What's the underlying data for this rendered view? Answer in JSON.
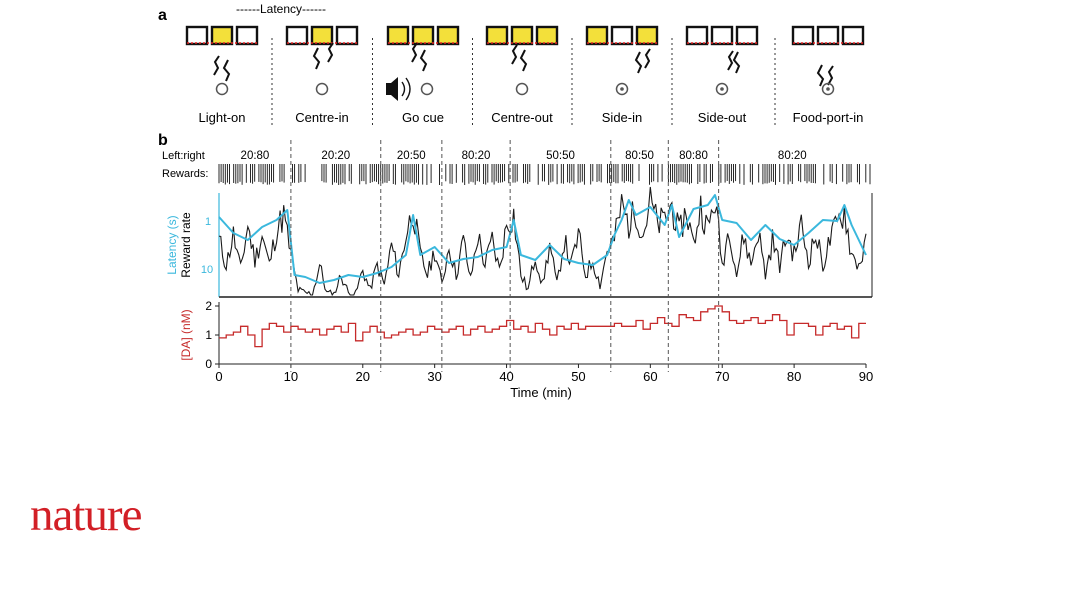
{
  "panel_a": {
    "label": "a",
    "latency_label": "------Latency------",
    "stages": [
      "Light-on",
      "Centre-in",
      "Go cue",
      "Centre-out",
      "Side-in",
      "Side-out",
      "Food-port-in"
    ]
  },
  "panel_b": {
    "label": "b",
    "left_right_label": "Left:right",
    "rewards_label": "Rewards:"
  },
  "brand": {
    "logo_text": "nature"
  },
  "colors": {
    "latency": "#3bb8dd",
    "reward": "#1a1a1a",
    "da": "#c62a2a",
    "highlight": "#f3e03a",
    "light": "#e02020"
  },
  "chart_data": [
    {
      "type": "line",
      "title": "",
      "blocks": [
        {
          "label": "20:80",
          "start": 0,
          "end": 10
        },
        {
          "label": "20:20",
          "start": 10,
          "end": 22.5
        },
        {
          "label": "20:50",
          "start": 22.5,
          "end": 31
        },
        {
          "label": "80:20",
          "start": 31,
          "end": 40.5
        },
        {
          "label": "50:50",
          "start": 40.5,
          "end": 54.5
        },
        {
          "label": "80:50",
          "start": 54.5,
          "end": 62.5
        },
        {
          "label": "80:80",
          "start": 62.5,
          "end": 69.5
        },
        {
          "label": "80:20",
          "start": 69.5,
          "end": 90
        }
      ],
      "ylabel_left": "Latency (s)",
      "ylabel_right": "Reward rate",
      "yticks": [
        "1",
        "10"
      ],
      "xlim": [
        0,
        90
      ],
      "series": [
        {
          "name": "Latency (s)",
          "x": [
            0,
            2,
            4,
            6,
            8,
            9.5,
            10.5,
            12,
            14,
            16,
            18,
            20,
            22,
            24,
            26,
            27,
            28,
            30,
            32,
            34,
            36,
            38,
            40,
            41,
            42,
            44,
            46,
            48,
            50,
            52,
            54,
            55,
            56,
            57,
            58,
            60,
            62,
            63,
            64,
            66,
            68,
            69,
            70,
            72,
            74,
            76,
            78,
            80,
            82,
            84,
            86,
            87,
            88,
            90
          ],
          "y": [
            0.78,
            0.62,
            0.55,
            0.68,
            0.75,
            0.85,
            0.2,
            0.18,
            0.12,
            0.15,
            0.2,
            0.18,
            0.22,
            0.28,
            0.4,
            0.8,
            0.4,
            0.48,
            0.32,
            0.36,
            0.38,
            0.45,
            0.48,
            0.75,
            0.4,
            0.35,
            0.5,
            0.36,
            0.32,
            0.3,
            0.4,
            0.6,
            0.75,
            0.95,
            0.8,
            0.88,
            0.7,
            0.9,
            0.58,
            0.86,
            0.9,
            1.0,
            0.75,
            0.72,
            0.55,
            0.7,
            0.56,
            0.5,
            0.62,
            0.75,
            0.74,
            0.9,
            0.7,
            0.4
          ]
        },
        {
          "name": "Reward rate",
          "x": [
            0,
            1,
            2,
            3,
            4,
            5,
            6,
            7,
            8,
            9,
            10,
            11,
            12,
            13,
            14,
            15,
            16,
            17,
            18,
            19,
            20,
            21,
            22,
            23,
            24,
            25,
            26,
            27,
            28,
            29,
            30,
            31,
            32,
            33,
            34,
            35,
            36,
            37,
            38,
            39,
            40,
            41,
            42,
            43,
            44,
            45,
            46,
            47,
            48,
            49,
            50,
            51,
            52,
            53,
            54,
            55,
            56,
            57,
            58,
            59,
            60,
            61,
            62,
            63,
            64,
            65,
            66,
            67,
            68,
            69,
            70,
            71,
            72,
            73,
            74,
            75,
            76,
            77,
            78,
            79,
            80,
            81,
            82,
            83,
            84,
            85,
            86,
            87,
            88,
            89,
            90
          ],
          "y": [
            0.55,
            0.3,
            0.6,
            0.25,
            0.7,
            0.35,
            0.6,
            0.3,
            0.65,
            0.8,
            0.4,
            0.05,
            0.02,
            0.01,
            0.3,
            0.02,
            0.01,
            0.2,
            0.02,
            0.01,
            0.25,
            0.05,
            0.3,
            0.1,
            0.5,
            0.2,
            0.6,
            0.85,
            0.4,
            0.2,
            0.45,
            0.1,
            0.5,
            0.2,
            0.55,
            0.15,
            0.6,
            0.3,
            0.55,
            0.25,
            0.7,
            0.8,
            0.2,
            0.05,
            0.4,
            0.1,
            0.5,
            0.1,
            0.55,
            0.3,
            0.6,
            0.2,
            0.35,
            0.1,
            0.45,
            0.55,
            0.9,
            0.7,
            0.85,
            0.6,
            0.95,
            0.7,
            0.75,
            0.9,
            0.6,
            0.85,
            0.5,
            0.9,
            0.65,
            0.95,
            0.3,
            0.7,
            0.2,
            0.6,
            0.3,
            0.65,
            0.2,
            0.55,
            0.3,
            0.6,
            0.4,
            0.7,
            0.35,
            0.6,
            0.3,
            0.55,
            0.7,
            0.85,
            0.4,
            0.3,
            0.5
          ]
        }
      ]
    },
    {
      "type": "line",
      "ylabel": "[DA] (nM)",
      "xlabel": "Time (min)",
      "xlim": [
        0,
        90
      ],
      "ylim": [
        0,
        2
      ],
      "xticks": [
        0,
        10,
        20,
        30,
        40,
        50,
        60,
        70,
        80,
        90
      ],
      "yticks": [
        0,
        1,
        2
      ],
      "series": [
        {
          "name": "[DA] (nM)",
          "x": [
            0,
            1,
            2,
            3,
            4,
            5,
            6,
            7,
            8,
            9,
            10,
            11,
            12,
            13,
            14,
            15,
            16,
            17,
            18,
            19,
            20,
            21,
            22,
            23,
            24,
            25,
            26,
            27,
            28,
            29,
            30,
            31,
            32,
            33,
            34,
            35,
            36,
            37,
            38,
            39,
            40,
            41,
            42,
            43,
            44,
            45,
            46,
            47,
            48,
            49,
            50,
            51,
            52,
            53,
            54,
            55,
            56,
            57,
            58,
            59,
            60,
            61,
            62,
            63,
            64,
            65,
            66,
            67,
            68,
            69,
            70,
            71,
            72,
            73,
            74,
            75,
            76,
            77,
            78,
            79,
            80,
            81,
            82,
            83,
            84,
            85,
            86,
            87,
            88,
            89,
            90
          ],
          "y": [
            0.9,
            1.0,
            1.1,
            1.3,
            1.0,
            0.6,
            1.2,
            1.4,
            1.3,
            1.1,
            1.3,
            1.2,
            1.1,
            1.2,
            1.0,
            1.2,
            1.3,
            1.1,
            1.4,
            0.8,
            1.1,
            1.3,
            1.1,
            0.9,
            1.0,
            1.1,
            1.2,
            1.0,
            1.1,
            1.3,
            1.2,
            1.1,
            1.2,
            1.3,
            1.0,
            1.2,
            1.3,
            1.1,
            1.2,
            1.3,
            1.5,
            1.2,
            1.3,
            1.1,
            1.4,
            1.2,
            1.0,
            1.3,
            1.2,
            1.4,
            1.2,
            1.3,
            1.3,
            1.3,
            1.3,
            1.4,
            1.3,
            1.3,
            1.5,
            1.2,
            1.4,
            1.6,
            1.4,
            1.3,
            1.7,
            1.6,
            1.5,
            1.8,
            1.9,
            2.0,
            1.8,
            1.5,
            1.4,
            1.5,
            1.6,
            1.4,
            1.5,
            1.7,
            1.5,
            1.0,
            1.4,
            1.4,
            1.3,
            1.0,
            1.3,
            1.4,
            1.2,
            1.3,
            0.9,
            1.4,
            1.4
          ]
        }
      ]
    }
  ]
}
